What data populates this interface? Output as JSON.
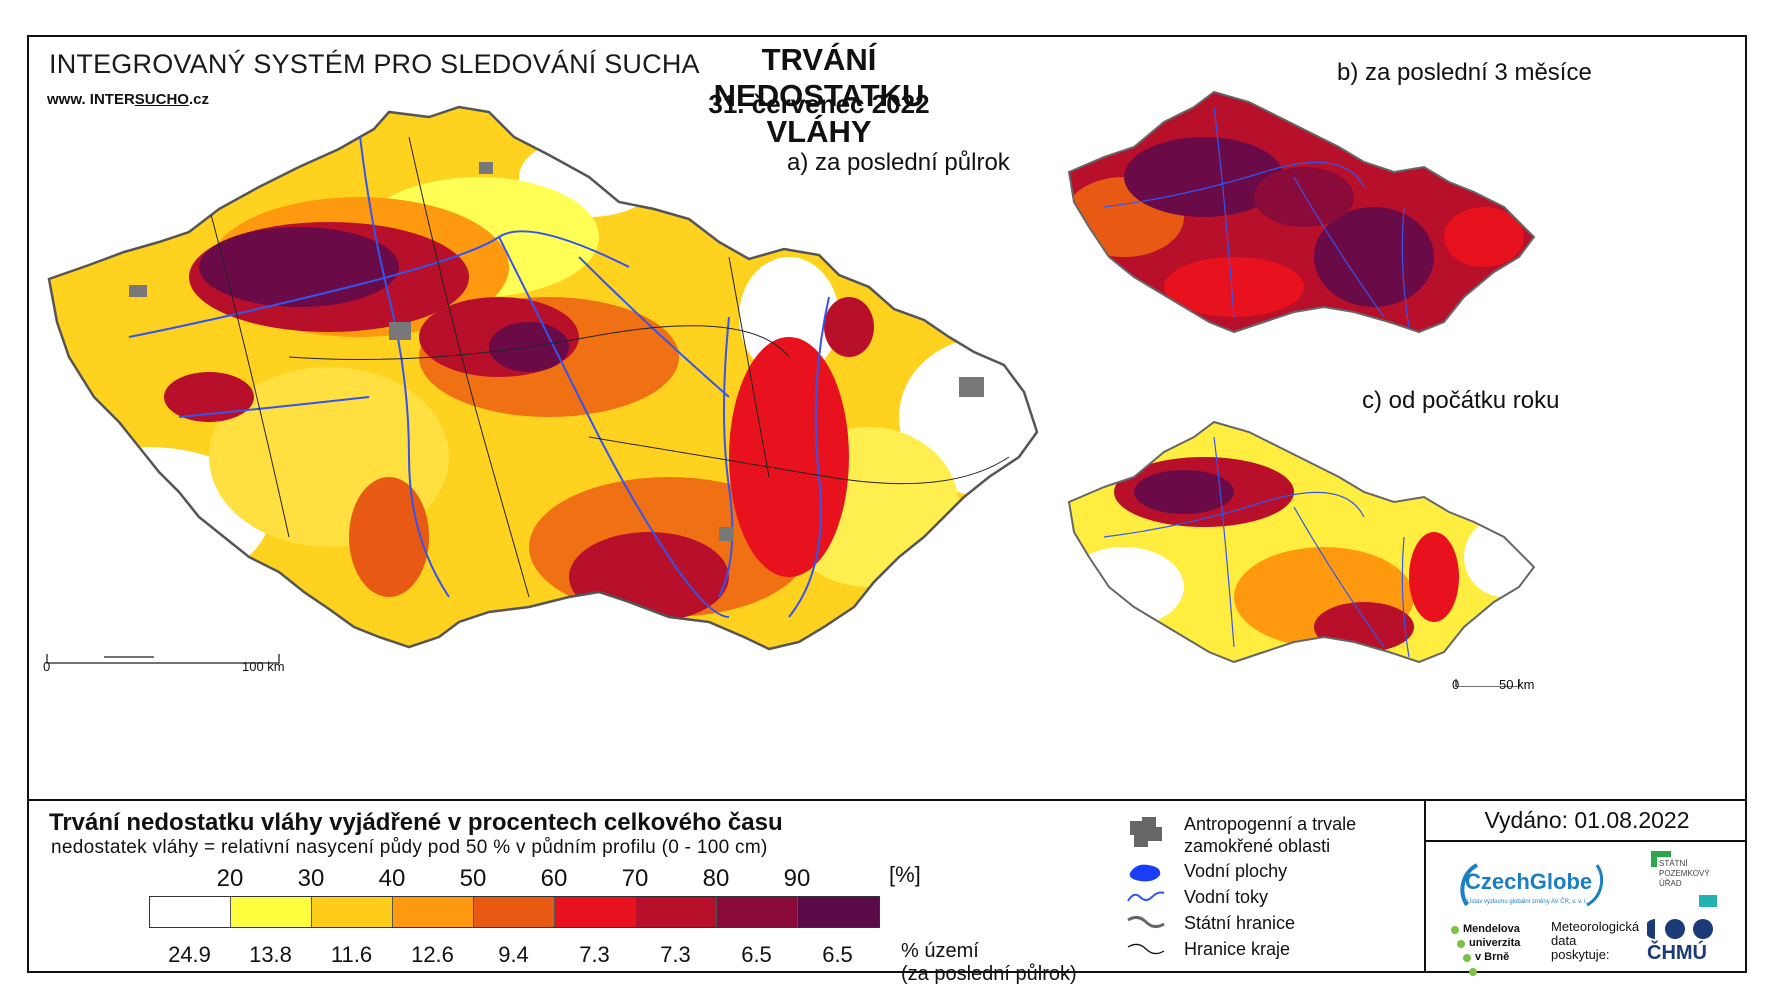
{
  "header": {
    "system_title": "INTEGROVANÝ SYSTÉM PRO SLEDOVÁNÍ SUCHA",
    "url_prefix": "www. INTER",
    "url_highlight": "SUCHO",
    "url_suffix": ".cz",
    "main_title": "TRVÁNÍ NEDOSTATKU VLÁHY",
    "date": "31. červenec 2022"
  },
  "panels": {
    "a_label": "a) za poslední půlrok",
    "b_label": "b) za poslední 3 měsíce",
    "c_label": "c) od počátku roku"
  },
  "scalebars": {
    "main_zero": "0",
    "main_end": "100 km",
    "small_zero": "0",
    "small_end": "50 km"
  },
  "legend": {
    "title": "Trvání nedostatku vláhy vyjádřené v procentech celkového času",
    "subtitle": "nedostatek vláhy = relativní nasycení půdy pod 50 % v půdním profilu (0 - 100 cm)",
    "unit": "[%]",
    "thresholds": [
      "20",
      "30",
      "40",
      "50",
      "60",
      "70",
      "80",
      "90"
    ],
    "colors": [
      "#ffffff",
      "#ffff40",
      "#ffcc1a",
      "#ff9a10",
      "#e85a14",
      "#e8121e",
      "#b8102a",
      "#8a0a3a",
      "#5a0a46"
    ],
    "percent_area": [
      "24.9",
      "13.8",
      "11.6",
      "12.6",
      "9.4",
      "7.3",
      "7.3",
      "6.5",
      "6.5"
    ],
    "percent_label_line1": "% území",
    "percent_label_line2": "(za poslední půlrok)"
  },
  "map_legend": {
    "urban": "Antropogenní a trvale zamokřené oblasti",
    "water_bodies": "Vodní plochy",
    "rivers": "Vodní toky",
    "state_border": "Státní hranice",
    "region_border": "Hranice kraje"
  },
  "footer": {
    "issued": "Vydáno: 01.08.2022",
    "czechglobe": "CzechGlobe",
    "czechglobe_sub": "Ústav výzkumu globální změny AV ČR, v. v. i.",
    "spu": "STÁTNÍ POZEMKOVÝ ÚŘAD",
    "mendel_1": "Mendelova",
    "mendel_2": "univerzita",
    "mendel_3": "v Brně",
    "meteo_1": "Meteorologická",
    "meteo_2": "data",
    "meteo_3": "poskytuje:",
    "chmu": "ČHMÚ"
  }
}
